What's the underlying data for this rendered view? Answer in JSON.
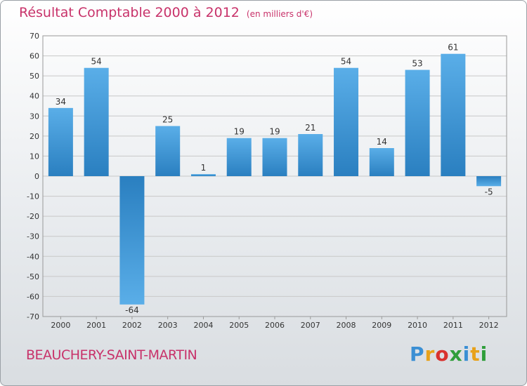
{
  "header": {
    "title": "Résultat Comptable 2000 à 2012",
    "subtitle": "(en milliers d'€)"
  },
  "footer": {
    "commune": "BEAUCHERY-SAINT-MARTIN",
    "logo": [
      "P",
      "r",
      "o",
      "x",
      "i",
      "t",
      "i"
    ],
    "logo_colors": [
      "#3a8fd4",
      "#e8a21a",
      "#d9322e",
      "#2f9e3a",
      "#3a8fd4",
      "#e8a21a",
      "#2f9e3a"
    ]
  },
  "colors": {
    "bar_light": "#5aaee8",
    "bar_dark": "#2a7fc0",
    "grid": "#c8c8c8",
    "accent": "#c8326a"
  },
  "chart_data": {
    "type": "bar",
    "title": "Résultat Comptable 2000 à 2012",
    "subtitle": "(en milliers d'€)",
    "xlabel": "",
    "ylabel": "",
    "ylim": [
      -70,
      70
    ],
    "yticks": [
      70,
      60,
      50,
      40,
      30,
      20,
      10,
      0,
      -10,
      -20,
      -30,
      -40,
      -50,
      -60,
      -70
    ],
    "grid": true,
    "categories": [
      "2000",
      "2001",
      "2002",
      "2003",
      "2004",
      "2005",
      "2006",
      "2007",
      "2008",
      "2009",
      "2010",
      "2011",
      "2012"
    ],
    "values": [
      34,
      54,
      -64,
      25,
      1,
      19,
      19,
      21,
      54,
      14,
      53,
      61,
      -5
    ]
  }
}
